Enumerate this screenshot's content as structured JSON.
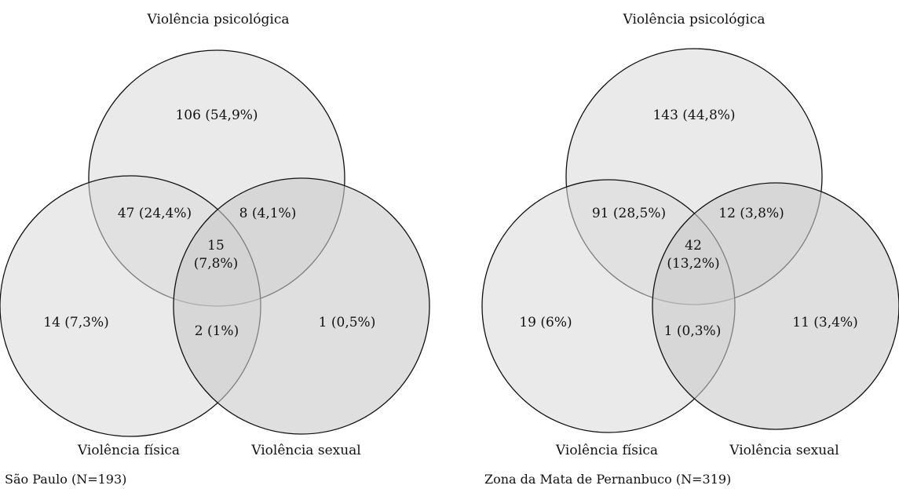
{
  "colors": {
    "circle_fill": "#d9d9d9",
    "circle_stroke": "#111111",
    "background": "#ffffff"
  },
  "diagrams": [
    {
      "caption": "São Paulo (N=193)",
      "labels": {
        "top": "Violência psicológica",
        "left": "Violência física",
        "right": "Violência sexual"
      },
      "regions": {
        "psych_only": "106 (54,9%)",
        "psych_fisica": "47 (24,4%)",
        "psych_sexual": "8 (4,1%)",
        "all_three_line1": "15",
        "all_three_line2": "(7,8%)",
        "fisica_only": "14 (7,3%)",
        "fisica_sexual": "2 (1%)",
        "sexual_only": "1 (0,5%)"
      }
    },
    {
      "caption": "Zona da Mata de Pernanbuco (N=319)",
      "labels": {
        "top": "Violência psicológica",
        "left": "Violência física",
        "right": "Violência sexual"
      },
      "regions": {
        "psych_only": "143 (44,8%)",
        "psych_fisica": "91 (28,5%)",
        "psych_sexual": "12 (3,8%)",
        "all_three_line1": "42",
        "all_three_line2": "(13,2%)",
        "fisica_only": "19 (6%)",
        "fisica_sexual": "1 (0,3%)",
        "sexual_only": "11 (3,4%)"
      }
    }
  ]
}
